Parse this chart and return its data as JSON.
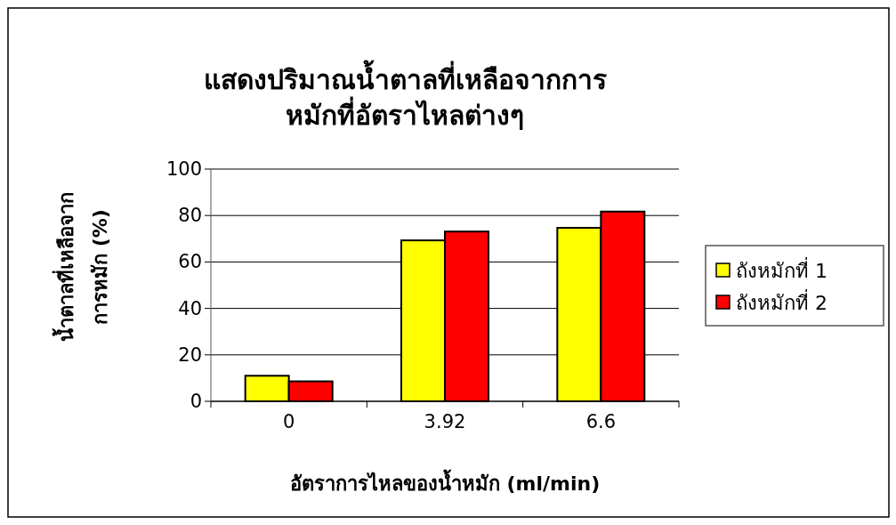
{
  "chart_data": {
    "type": "bar",
    "title": "แสดงปริมาณน้ำตาลที่เหลือจากการ\nหมักที่อัตราไหลต่างๆ",
    "xlabel": "อัตราการไหลของน้ำหมัก (ml/min)",
    "ylabel": "น้ำตาลที่เหลือจาก\nการหมัก (%)",
    "categories": [
      "0",
      "3.92",
      "6.6"
    ],
    "series": [
      {
        "name": "ถังหมักที่ 1",
        "color": "#ffff00",
        "values": [
          11,
          69.3,
          74.7
        ]
      },
      {
        "name": "ถังหมักที่ 2",
        "color": "#ff0000",
        "values": [
          8.6,
          73.1,
          81.7
        ]
      }
    ],
    "ylim": [
      0,
      100
    ],
    "yticks": [
      0,
      20,
      40,
      60,
      80,
      100
    ],
    "grid": "y",
    "legend": "right"
  }
}
